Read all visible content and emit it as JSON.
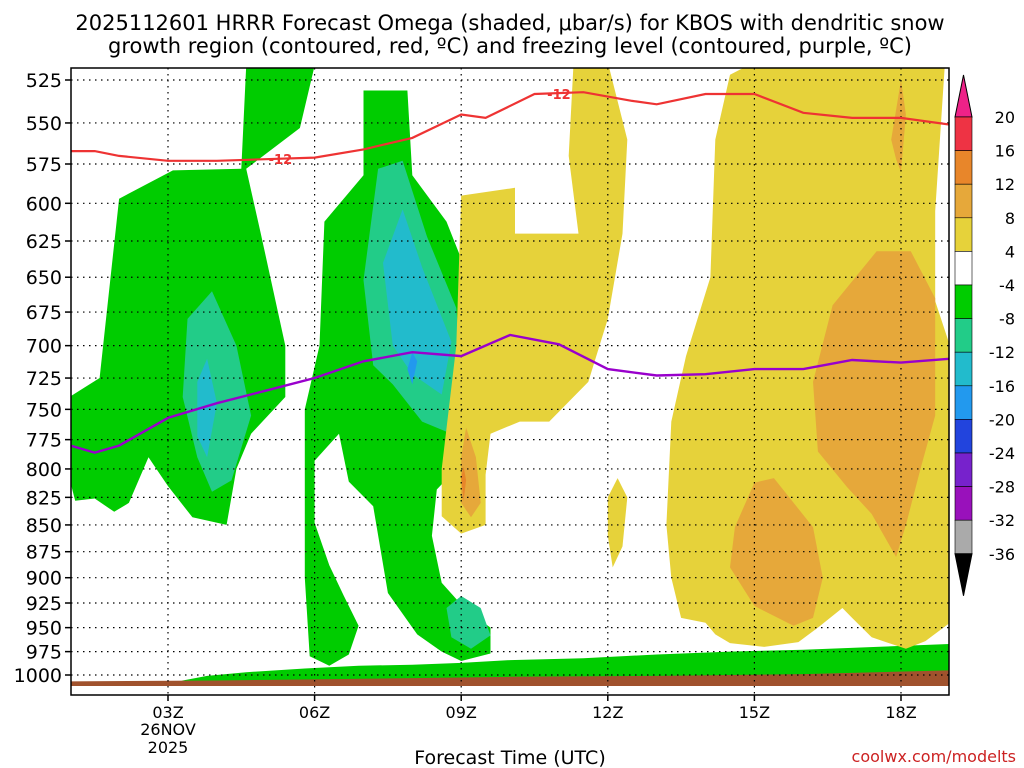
{
  "header": {
    "title_line1": "2025112601 HRRR Forecast Omega (shaded, μbar/s) for KBOS with dendritic snow",
    "title_line2": "growth region (contoured, red, ºC) and freezing level (contoured, purple, ºC)"
  },
  "footer": {
    "xlabel": "Forecast Time (UTC)",
    "credit": "coolwx.com/modelts",
    "date_line1": "26NOV",
    "date_line2": "2025"
  },
  "chart_data": {
    "type": "heatmap",
    "y_axis": {
      "label": "",
      "ticks": [
        525,
        550,
        575,
        600,
        625,
        650,
        675,
        700,
        725,
        750,
        775,
        800,
        825,
        850,
        875,
        900,
        925,
        950,
        975,
        1000
      ],
      "range": [
        515,
        1012
      ],
      "scale": "log-pressure"
    },
    "x_axis": {
      "ticks": [
        "03Z",
        "06Z",
        "09Z",
        "12Z",
        "15Z",
        "18Z"
      ],
      "tick_hours": [
        3,
        6,
        9,
        12,
        15,
        18
      ],
      "range_hours": [
        1,
        19
      ]
    },
    "colorbar": {
      "labels": [
        "20",
        "16",
        "12",
        "8",
        "4",
        "-4",
        "-8",
        "-12",
        "-16",
        "-20",
        "-24",
        "-28",
        "-32",
        "-36"
      ],
      "levels": [
        {
          "from": 16,
          "to": 20,
          "color": "#ee3344"
        },
        {
          "from": 12,
          "to": 16,
          "color": "#e8862a"
        },
        {
          "from": 8,
          "to": 12,
          "color": "#e6a83a"
        },
        {
          "from": 4,
          "to": 8,
          "color": "#e6d23a"
        },
        {
          "from": -4,
          "to": 4,
          "color": "#ffffff"
        },
        {
          "from": -8,
          "to": -4,
          "color": "#00cc00"
        },
        {
          "from": -12,
          "to": -8,
          "color": "#22cc88"
        },
        {
          "from": -16,
          "to": -12,
          "color": "#22bbcc"
        },
        {
          "from": -20,
          "to": -16,
          "color": "#2299ee"
        },
        {
          "from": -24,
          "to": -20,
          "color": "#2244dd"
        },
        {
          "from": -28,
          "to": -24,
          "color": "#7722cc"
        },
        {
          "from": -32,
          "to": -28,
          "color": "#9911bb"
        },
        {
          "from": -36,
          "to": -32,
          "color": "#aaaaaa"
        }
      ],
      "top_arrow_color": "#ee2288",
      "bottom_arrow_color": "#000000"
    },
    "omega_regions": [
      {
        "omega": -6,
        "points": [
          [
            3.0,
            1012
          ],
          [
            3.3,
            1006
          ],
          [
            3.8,
            1001
          ],
          [
            4.6,
            997
          ],
          [
            5.8,
            993
          ],
          [
            6.9,
            990
          ],
          [
            8.0,
            989
          ],
          [
            9.0,
            987
          ],
          [
            10.0,
            984
          ],
          [
            11.5,
            982
          ],
          [
            13.0,
            978
          ],
          [
            14.5,
            975
          ],
          [
            16.0,
            973
          ],
          [
            17.5,
            970
          ],
          [
            19.0,
            967
          ],
          [
            19.0,
            1012
          ]
        ]
      },
      {
        "omega": -6,
        "points": [
          [
            0.5,
            752
          ],
          [
            1.6,
            725
          ],
          [
            2.0,
            597
          ],
          [
            3.1,
            579
          ],
          [
            4.5,
            578
          ],
          [
            4.6,
            517
          ],
          [
            6.0,
            517
          ],
          [
            5.7,
            553
          ],
          [
            4.6,
            578
          ],
          [
            4.9,
            620
          ],
          [
            5.4,
            700
          ],
          [
            5.4,
            740
          ],
          [
            4.7,
            770
          ],
          [
            4.4,
            800
          ],
          [
            4.2,
            850
          ],
          [
            3.5,
            843
          ],
          [
            3.0,
            815
          ],
          [
            2.6,
            790
          ],
          [
            2.2,
            830
          ],
          [
            1.9,
            838
          ],
          [
            1.5,
            826
          ],
          [
            1.1,
            828
          ],
          [
            0.9,
            795
          ],
          [
            0.6,
            775
          ]
        ]
      },
      {
        "omega": -6,
        "points": [
          [
            5.8,
            750
          ],
          [
            6.1,
            700
          ],
          [
            6.2,
            612
          ],
          [
            7.0,
            582
          ],
          [
            7.0,
            531
          ],
          [
            7.9,
            531
          ],
          [
            8.0,
            582
          ],
          [
            8.7,
            612
          ],
          [
            9.4,
            672
          ],
          [
            9.6,
            738
          ],
          [
            9.1,
            776
          ],
          [
            8.9,
            800
          ],
          [
            8.5,
            818
          ],
          [
            8.4,
            860
          ],
          [
            8.6,
            905
          ],
          [
            9.1,
            932
          ],
          [
            9.6,
            950
          ],
          [
            9.6,
            977
          ],
          [
            9.0,
            985
          ],
          [
            8.6,
            975
          ],
          [
            8.1,
            957
          ],
          [
            7.5,
            915
          ],
          [
            7.2,
            833
          ],
          [
            6.7,
            811
          ],
          [
            6.5,
            770
          ],
          [
            6.0,
            793
          ],
          [
            6.0,
            848
          ],
          [
            6.3,
            888
          ],
          [
            6.6,
            918
          ],
          [
            6.9,
            948
          ],
          [
            6.7,
            978
          ],
          [
            6.3,
            990
          ],
          [
            5.9,
            980
          ],
          [
            5.8,
            900
          ]
        ]
      },
      {
        "omega": -10,
        "points": [
          [
            3.4,
            680
          ],
          [
            3.9,
            660
          ],
          [
            4.4,
            700
          ],
          [
            4.7,
            755
          ],
          [
            4.3,
            810
          ],
          [
            3.9,
            820
          ],
          [
            3.6,
            790
          ],
          [
            3.3,
            740
          ]
        ]
      },
      {
        "omega": -10,
        "points": [
          [
            7.0,
            652
          ],
          [
            7.3,
            578
          ],
          [
            7.8,
            573
          ],
          [
            8.3,
            622
          ],
          [
            8.9,
            672
          ],
          [
            9.0,
            720
          ],
          [
            8.8,
            770
          ],
          [
            8.2,
            760
          ],
          [
            7.6,
            730
          ],
          [
            7.2,
            715
          ]
        ]
      },
      {
        "omega": -14,
        "points": [
          [
            3.6,
            728
          ],
          [
            3.8,
            710
          ],
          [
            4.0,
            745
          ],
          [
            3.8,
            790
          ],
          [
            3.6,
            772
          ]
        ]
      },
      {
        "omega": -14,
        "points": [
          [
            7.4,
            640
          ],
          [
            7.8,
            604
          ],
          [
            8.2,
            643
          ],
          [
            8.8,
            697
          ],
          [
            8.6,
            738
          ],
          [
            8.0,
            722
          ],
          [
            7.6,
            700
          ]
        ]
      },
      {
        "omega": -10,
        "points": [
          [
            8.7,
            930
          ],
          [
            9.0,
            918
          ],
          [
            9.4,
            930
          ],
          [
            9.6,
            958
          ],
          [
            9.2,
            972
          ],
          [
            8.8,
            960
          ]
        ]
      },
      {
        "omega": -18,
        "points": [
          [
            8.0,
            705
          ],
          [
            8.1,
            712
          ],
          [
            8.0,
            730
          ],
          [
            7.9,
            718
          ]
        ]
      },
      {
        "omega": 6,
        "points": [
          [
            8.6,
            800
          ],
          [
            8.9,
            700
          ],
          [
            9.0,
            595
          ],
          [
            10.1,
            590
          ],
          [
            10.1,
            620
          ],
          [
            11.4,
            620
          ],
          [
            11.2,
            570
          ],
          [
            11.3,
            515
          ],
          [
            12.0,
            515
          ],
          [
            12.4,
            560
          ],
          [
            12.3,
            620
          ],
          [
            12.0,
            680
          ],
          [
            11.6,
            728
          ],
          [
            10.8,
            760
          ],
          [
            10.2,
            760
          ],
          [
            9.6,
            770
          ],
          [
            9.5,
            805
          ],
          [
            9.5,
            850
          ],
          [
            9.0,
            858
          ],
          [
            8.6,
            842
          ]
        ]
      },
      {
        "omega": 6,
        "points": [
          [
            12.0,
            825
          ],
          [
            12.2,
            808
          ],
          [
            12.4,
            825
          ],
          [
            12.3,
            870
          ],
          [
            12.1,
            890
          ],
          [
            12.0,
            860
          ]
        ]
      },
      {
        "omega": 6,
        "points": [
          [
            13.3,
            760
          ],
          [
            13.6,
            708
          ],
          [
            14.1,
            650
          ],
          [
            14.2,
            560
          ],
          [
            14.5,
            522
          ],
          [
            15.0,
            515
          ],
          [
            18.9,
            515
          ],
          [
            18.7,
            605
          ],
          [
            18.7,
            667
          ],
          [
            19.0,
            700
          ],
          [
            19.0,
            945
          ],
          [
            18.5,
            964
          ],
          [
            18.1,
            972
          ],
          [
            17.4,
            960
          ],
          [
            17.0,
            940
          ],
          [
            16.8,
            930
          ],
          [
            16.3,
            950
          ],
          [
            15.9,
            965
          ],
          [
            15.2,
            970
          ],
          [
            14.5,
            966
          ],
          [
            14.2,
            957
          ],
          [
            14.0,
            945
          ],
          [
            13.5,
            940
          ],
          [
            13.3,
            900
          ],
          [
            13.2,
            850
          ]
        ]
      },
      {
        "omega": 10,
        "points": [
          [
            9.0,
            790
          ],
          [
            9.1,
            765
          ],
          [
            9.3,
            790
          ],
          [
            9.4,
            830
          ],
          [
            9.2,
            843
          ],
          [
            9.0,
            830
          ]
        ]
      },
      {
        "omega": 10,
        "points": [
          [
            14.5,
            890
          ],
          [
            14.6,
            852
          ],
          [
            15.0,
            812
          ],
          [
            15.4,
            808
          ],
          [
            16.2,
            852
          ],
          [
            16.4,
            900
          ],
          [
            16.2,
            940
          ],
          [
            15.8,
            948
          ],
          [
            15.0,
            928
          ]
        ]
      },
      {
        "omega": 10,
        "points": [
          [
            16.2,
            728
          ],
          [
            16.6,
            670
          ],
          [
            17.5,
            632
          ],
          [
            18.2,
            632
          ],
          [
            18.7,
            665
          ],
          [
            18.7,
            755
          ],
          [
            18.4,
            800
          ],
          [
            18.1,
            850
          ],
          [
            17.9,
            880
          ],
          [
            17.4,
            840
          ],
          [
            16.9,
            816
          ],
          [
            16.3,
            785
          ]
        ]
      },
      {
        "omega": 10,
        "points": [
          [
            17.8,
            560
          ],
          [
            18.0,
            525
          ],
          [
            18.1,
            545
          ],
          [
            18.0,
            580
          ],
          [
            17.9,
            572
          ]
        ]
      },
      {
        "omega": 14,
        "points": [
          [
            9.0,
            808
          ],
          [
            9.05,
            798
          ],
          [
            9.1,
            810
          ],
          [
            9.05,
            828
          ]
        ]
      }
    ],
    "terrain": {
      "color": "#a0522d",
      "points": [
        [
          1.0,
          1012
        ],
        [
          1.0,
          1007
        ],
        [
          4.0,
          1006
        ],
        [
          7.0,
          1004
        ],
        [
          10.0,
          1002
        ],
        [
          13.0,
          1001
        ],
        [
          16.0,
          999
        ],
        [
          19.0,
          995
        ],
        [
          19.0,
          1012
        ]
      ]
    },
    "dgz_contour": {
      "name": "-12",
      "color": "#ee3333",
      "points": [
        [
          1.0,
          567
        ],
        [
          1.5,
          567
        ],
        [
          2.0,
          570
        ],
        [
          3.0,
          573
        ],
        [
          4.0,
          573
        ],
        [
          5.0,
          572
        ],
        [
          6.0,
          571
        ],
        [
          7.0,
          566
        ],
        [
          8.0,
          559
        ],
        [
          9.0,
          545
        ],
        [
          9.5,
          547
        ],
        [
          10.5,
          533
        ],
        [
          11.5,
          532
        ],
        [
          12.5,
          537
        ],
        [
          13.0,
          539
        ],
        [
          14.0,
          533
        ],
        [
          15.0,
          533
        ],
        [
          16.0,
          544
        ],
        [
          17.0,
          547
        ],
        [
          18.0,
          547
        ],
        [
          19.0,
          551
        ]
      ],
      "label_positions": [
        [
          5.3,
          572
        ],
        [
          11.0,
          533
        ]
      ]
    },
    "freezing_level": {
      "color": "#9900cc",
      "points": [
        [
          1.0,
          780
        ],
        [
          1.5,
          786
        ],
        [
          2.0,
          780
        ],
        [
          3.0,
          757
        ],
        [
          4.0,
          745
        ],
        [
          5.0,
          735
        ],
        [
          6.0,
          725
        ],
        [
          7.0,
          712
        ],
        [
          8.0,
          705
        ],
        [
          9.0,
          708
        ],
        [
          10.0,
          692
        ],
        [
          11.0,
          699
        ],
        [
          12.0,
          718
        ],
        [
          13.0,
          723
        ],
        [
          14.0,
          722
        ],
        [
          15.0,
          718
        ],
        [
          16.0,
          718
        ],
        [
          17.0,
          711
        ],
        [
          18.0,
          713
        ],
        [
          19.0,
          710
        ]
      ]
    }
  }
}
